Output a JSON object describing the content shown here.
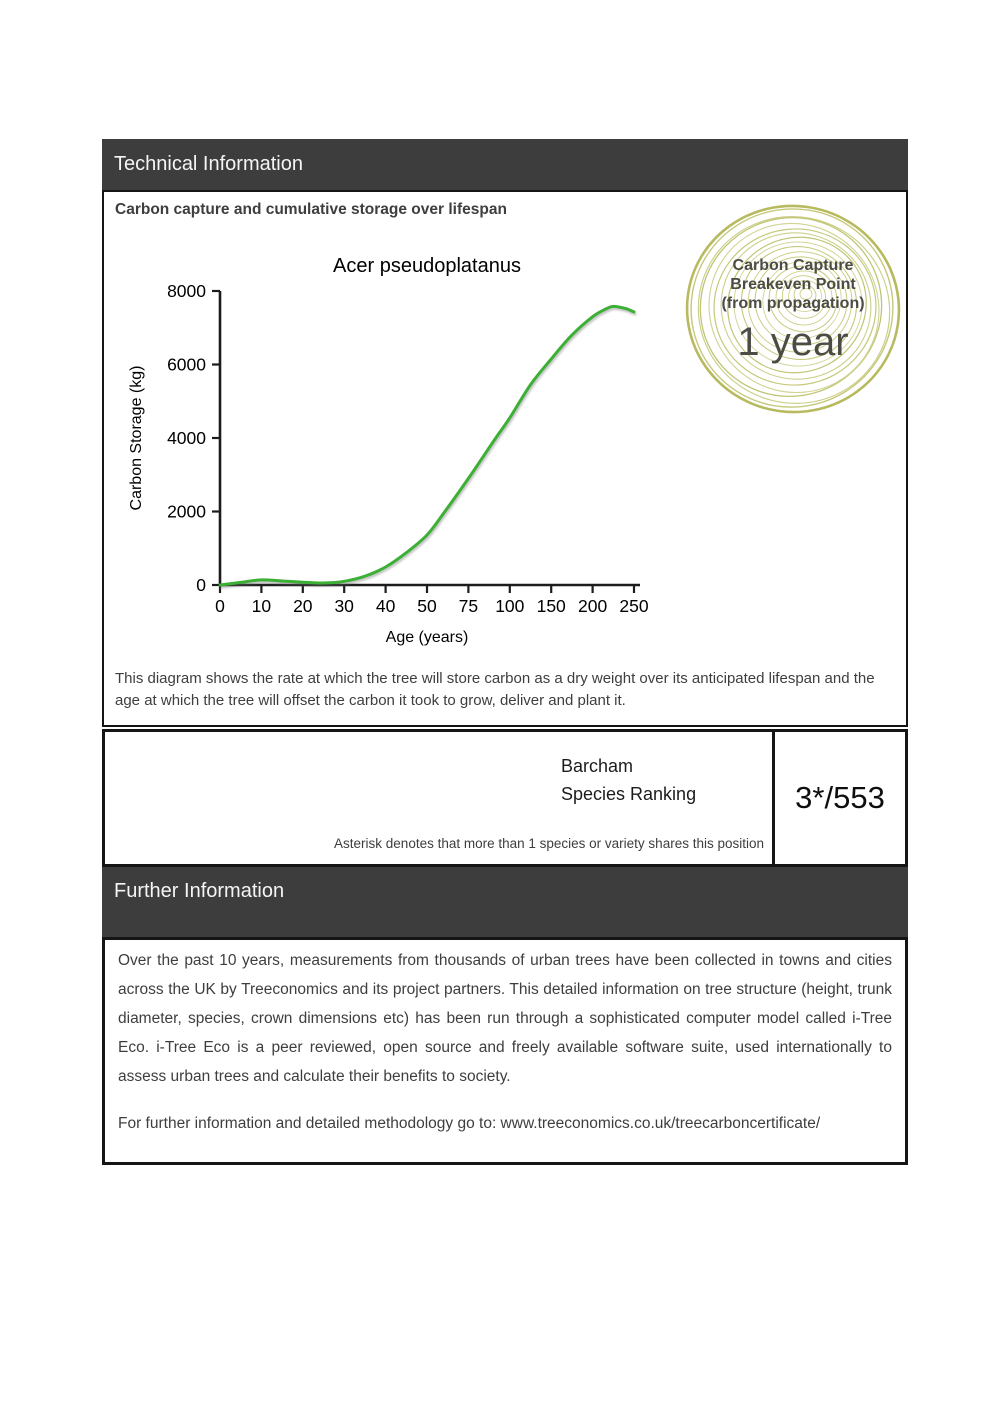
{
  "headers": {
    "technical": "Technical Information",
    "further": "Further Information"
  },
  "tech_section": {
    "heading": "Carbon capture and cumulative storage over lifespan",
    "description": "This diagram shows the rate at which the tree will store carbon as a dry weight over its anticipated lifespan and the age at which the tree will offset the carbon it took to grow, deliver and plant it."
  },
  "badge": {
    "line1": "Carbon Capture",
    "line2": "Breakeven Point",
    "line3": "(from propagation)",
    "value": "1 year",
    "ring_color": "#c3c577",
    "text_color": "#4c4c45"
  },
  "chart_data": {
    "type": "line",
    "title": "Acer pseudoplatanus",
    "xlabel": "Age (years)",
    "ylabel": "Carbon Storage (kg)",
    "x_scale": "non-linear, ticks equally spaced",
    "x_ticks": [
      0,
      10,
      20,
      30,
      40,
      50,
      75,
      100,
      150,
      200,
      250
    ],
    "y_ticks": [
      0,
      2000,
      4000,
      6000,
      8000
    ],
    "ylim": [
      0,
      8000
    ],
    "grid": false,
    "legend": "none",
    "line_color": "#3cb035",
    "series": [
      {
        "name": "Cumulative carbon storage",
        "x": [
          0,
          5,
          10,
          15,
          20,
          25,
          30,
          35,
          40,
          45,
          50,
          60,
          75,
          90,
          100,
          125,
          150,
          175,
          200,
          215,
          225,
          240,
          250
        ],
        "values": [
          0,
          70,
          140,
          110,
          75,
          55,
          100,
          240,
          490,
          880,
          1360,
          1950,
          2900,
          3900,
          4550,
          5450,
          6150,
          6800,
          7300,
          7500,
          7580,
          7520,
          7430
        ]
      }
    ]
  },
  "ranking": {
    "label_line1": "Barcham",
    "label_line2": "Species Ranking",
    "value": "3*/553",
    "note": "Asterisk denotes that more than 1 species or variety shares this position"
  },
  "further_section": {
    "paragraph": "Over the past 10 years, measurements from thousands of urban trees have been collected in towns and cities across the UK by Treeconomics and its project partners. This detailed information on tree structure (height, trunk diameter, species, crown dimensions etc) has been run through a sophisticated computer model called i-Tree Eco. i-Tree Eco is a peer reviewed, open source and freely available software suite, used internationally to assess urban trees and calculate their benefits to society.",
    "link_line": "For further information and detailed methodology go to: www.treeconomics.co.uk/treecarboncertificate/"
  }
}
